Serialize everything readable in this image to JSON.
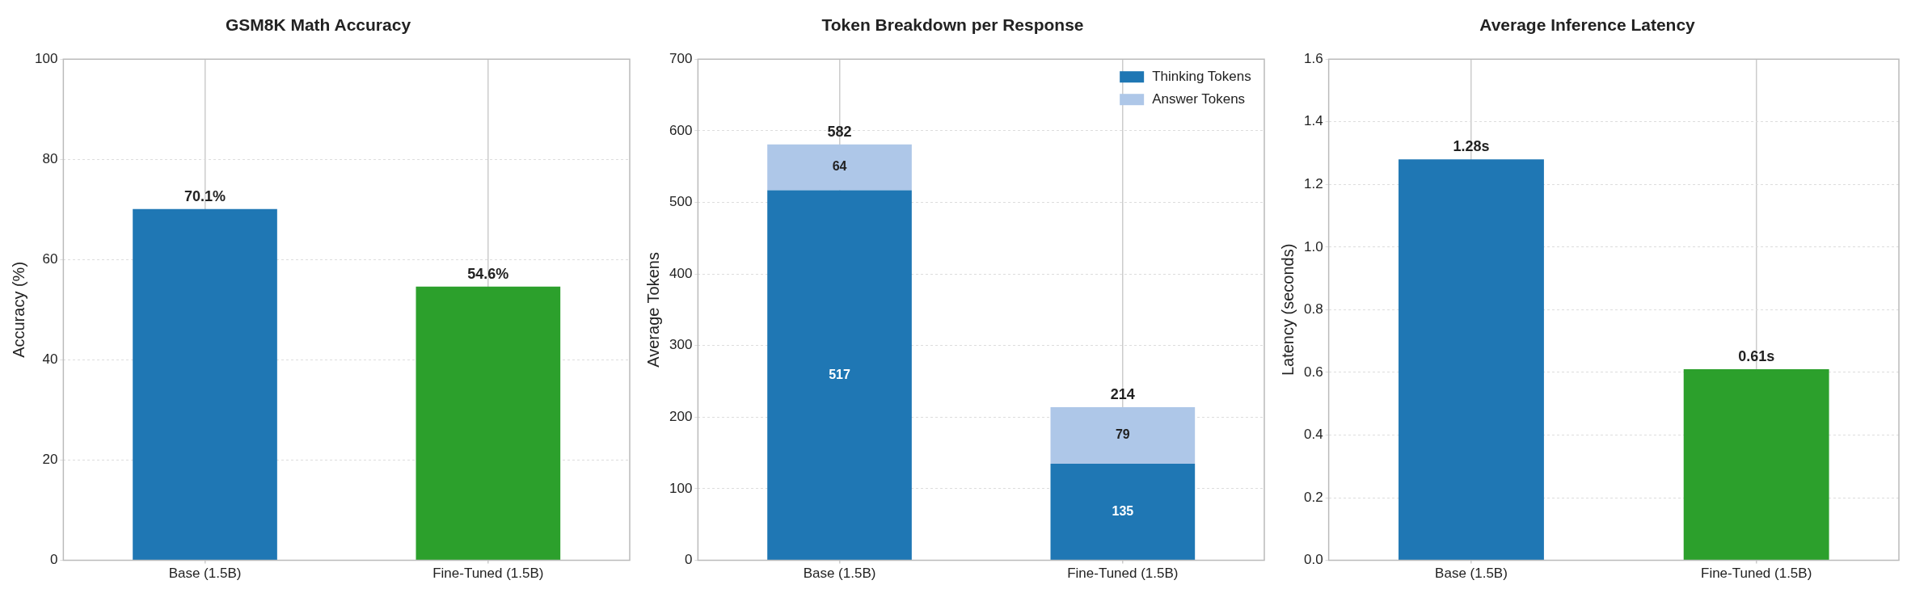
{
  "chart_data": [
    {
      "type": "bar",
      "title": "GSM8K Math Accuracy",
      "ylabel": "Accuracy (%)",
      "categories": [
        "Base (1.5B)",
        "Fine-Tuned (1.5B)"
      ],
      "values": [
        70.1,
        54.6
      ],
      "colors": [
        "#1f77b4",
        "#2ca02c"
      ],
      "value_labels": [
        "70.1%",
        "54.6%"
      ],
      "ylim": [
        0,
        100
      ],
      "yticks": [
        0,
        20,
        40,
        60,
        80,
        100
      ],
      "grid": true
    },
    {
      "type": "bar",
      "title": "Token Breakdown per Response",
      "ylabel": "Average Tokens",
      "categories": [
        "Base (1.5B)",
        "Fine-Tuned (1.5B)"
      ],
      "stacked": true,
      "series": [
        {
          "name": "Thinking Tokens",
          "color": "#1f77b4",
          "values": [
            517,
            135
          ]
        },
        {
          "name": "Answer Tokens",
          "color": "#aec7e8",
          "values": [
            64,
            79
          ]
        }
      ],
      "data_labels": true,
      "totals": [
        "582",
        "214"
      ],
      "ylim": [
        0,
        700
      ],
      "yticks": [
        0,
        100,
        200,
        300,
        400,
        500,
        600,
        700
      ],
      "grid": true,
      "legend": "top right"
    },
    {
      "type": "bar",
      "title": "Average Inference Latency",
      "ylabel": "Latency (seconds)",
      "categories": [
        "Base (1.5B)",
        "Fine-Tuned (1.5B)"
      ],
      "values": [
        1.28,
        0.61
      ],
      "colors": [
        "#1f77b4",
        "#2ca02c"
      ],
      "value_labels": [
        "1.28s",
        "0.61s"
      ],
      "ylim": [
        0,
        1.6
      ],
      "yticks": [
        {
          "value": 0,
          "label": "0.0"
        },
        {
          "value": 0.2,
          "label": "0.2"
        },
        {
          "value": 0.4,
          "label": "0.4"
        },
        {
          "value": 0.6,
          "label": "0.6"
        },
        {
          "value": 0.8,
          "label": "0.8"
        },
        {
          "value": 1.0,
          "label": "1.0"
        },
        {
          "value": 1.2,
          "label": "1.2"
        },
        {
          "value": 1.4,
          "label": "1.4"
        },
        {
          "value": 1.6,
          "label": "1.6"
        }
      ],
      "grid": true
    }
  ]
}
